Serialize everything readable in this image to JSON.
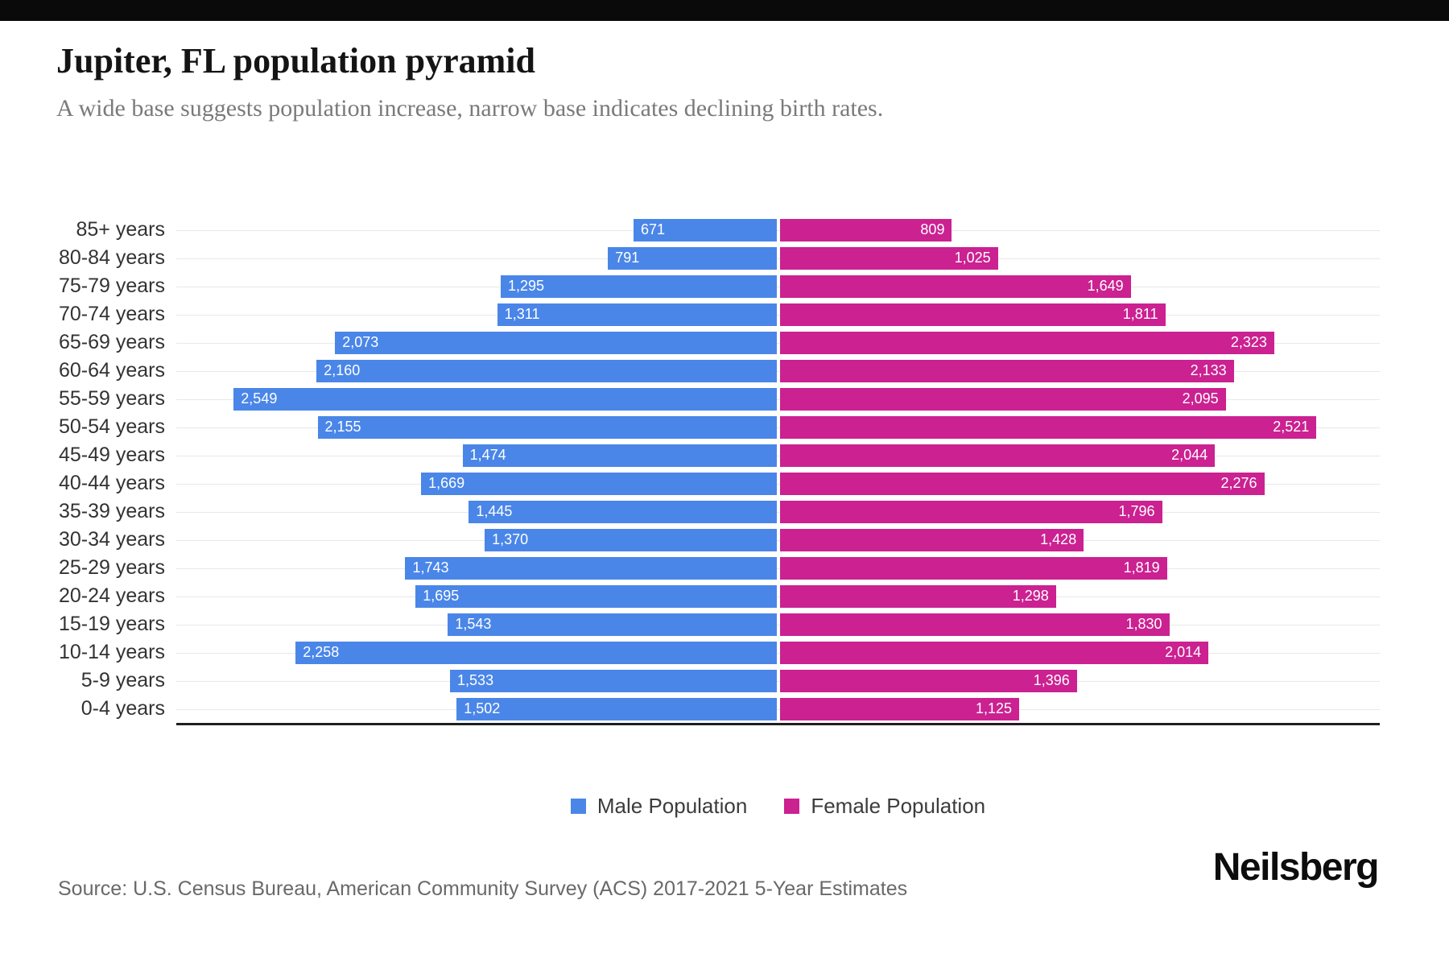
{
  "header": {
    "title": "Jupiter, FL population pyramid",
    "subtitle": "A wide base suggests population increase, narrow base indicates declining birth rates."
  },
  "chart_data": {
    "type": "bar",
    "variant": "population-pyramid",
    "title": "Jupiter, FL population pyramid",
    "categories": [
      "85+ years",
      "80-84 years",
      "75-79 years",
      "70-74 years",
      "65-69 years",
      "60-64 years",
      "55-59 years",
      "50-54 years",
      "45-49 years",
      "40-44 years",
      "35-39 years",
      "30-34 years",
      "25-29 years",
      "20-24 years",
      "15-19 years",
      "10-14 years",
      "5-9 years",
      "0-4 years"
    ],
    "series": [
      {
        "name": "Male Population",
        "color": "#4a86e8",
        "values": [
          671,
          791,
          1295,
          1311,
          2073,
          2160,
          2549,
          2155,
          1474,
          1669,
          1445,
          1370,
          1743,
          1695,
          1543,
          2258,
          1533,
          1502
        ]
      },
      {
        "name": "Female Population",
        "color": "#cb2191",
        "values": [
          809,
          1025,
          1649,
          1811,
          2323,
          2133,
          2095,
          2521,
          2044,
          2276,
          1796,
          1428,
          1819,
          1298,
          1830,
          2014,
          1396,
          1125
        ]
      }
    ],
    "axis_max": 2600,
    "grid": true,
    "legend_position": "bottom",
    "value_labels": "inside-outer-end"
  },
  "footer": {
    "source": "Source: U.S. Census Bureau, American Community Survey (ACS) 2017-2021 5-Year Estimates",
    "brand": "Neilsberg"
  }
}
